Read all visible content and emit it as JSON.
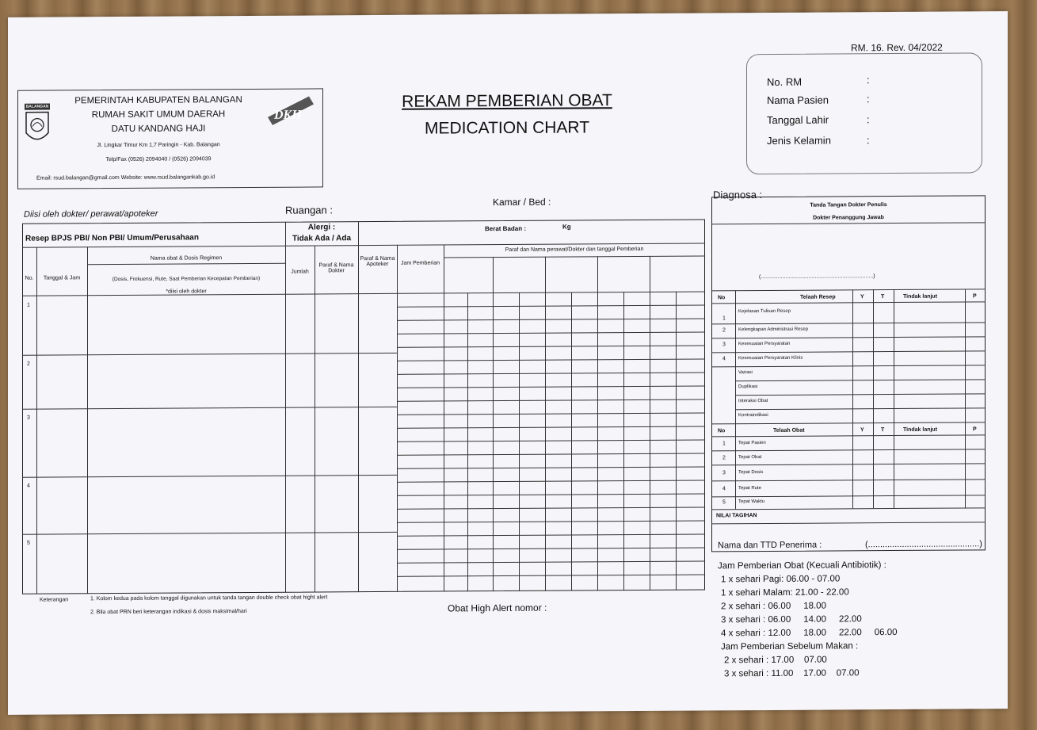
{
  "form_code": "RM. 16. Rev. 04/2022",
  "header": {
    "logo_text": "BALANGAN",
    "line1": "PEMERINTAH KABUPATEN BALANGAN",
    "line2": "RUMAH SAKIT UMUM DAERAH",
    "line3": "DATU KANDANG HAJI",
    "address": "Jl. Lingkar Timur Km 1,7 Paringin - Kab. Balangan",
    "phone": "Telp/Fax (0526) 2094040 / (0526) 2094039",
    "email": "Email: rsud.balangan@gmail.com Website: www.rsud.balangankab.go.id",
    "badge": "DKH"
  },
  "title": {
    "line1": "REKAM PEMBERIAN OBAT",
    "line2": "MEDICATION CHART"
  },
  "patient": {
    "no_rm": "No. RM",
    "nama": "Nama Pasien",
    "tgl": "Tanggal Lahir",
    "jk": "Jenis Kelamin",
    "colon": ":"
  },
  "labels": {
    "diisi": "Diisi oleh dokter/ perawat/apoteker",
    "ruangan": "Ruangan :",
    "kamar": "Kamar / Bed :",
    "diagnosa": "Diagnosa :",
    "resep": "Resep BPJS PBI/ Non PBI/ Umum/Perusahaan",
    "alergi": "Alergi :",
    "alergi2": "Tidak Ada / Ada",
    "berat": "Berat Badan :",
    "kg": "Kg",
    "no": "No.",
    "tanggal": "Tanggal & Jam",
    "nama_obat": "Nama obat & Dosis Regimen",
    "dosis_detail": "(Dosis, Frekuensi, Rute, Saat Pemberian Kecepatan Pemberian)",
    "diisi_dokter": "*diisi oleh dokter",
    "jumlah": "Jumlah",
    "paraf_dokter": "Paraf & Nama Dokter",
    "paraf_apoteker": "Paraf & Nama Apoteker",
    "jam_pemberian": "Jam Pemberian",
    "paraf_perawat": "Paraf dan Nama perawat/Dokter dan tanggal Pemberian",
    "rows": [
      "1",
      "2",
      "3",
      "4",
      "5"
    ],
    "keterangan": "Keterangan",
    "ket1": "1. Kolom kedua pada kolom tanggal digunakan untuk tanda tangan double check obat hight alert",
    "ket2": "2. Bila obat PRN beri keterangan indikasi & dosis maksimal/hari",
    "high_alert": "Obat High Alert nomor :"
  },
  "right": {
    "ttd1": "Tanda Tangan Dokter Penulis",
    "ttd2": "Dokter Penanggung Jawab",
    "bracket": "(.........................................................................)",
    "telaah_resep_head": [
      "No",
      "Telaah Resep",
      "Y",
      "T",
      "Tindak lanjut",
      "P"
    ],
    "telaah_resep": [
      [
        "1",
        "Kejelasan Tulisan Resep"
      ],
      [
        "2",
        "Kelengkapan Administrasi Resep"
      ],
      [
        "3",
        "Kesesuaian Persyaratan"
      ],
      [
        "4",
        "Kesesuaian Persyaratan Klinis"
      ],
      [
        "",
        "Variasi"
      ],
      [
        "",
        "Duplikasi"
      ],
      [
        "",
        "Interaksi Obat"
      ],
      [
        "",
        "Kontraindikasi"
      ]
    ],
    "telaah_obat_head": [
      "No",
      "Telaah Obat",
      "Y",
      "T",
      "Tindak lanjut",
      "P"
    ],
    "telaah_obat": [
      [
        "1",
        "Tepat Pasien"
      ],
      [
        "2",
        "Tepat Obat"
      ],
      [
        "3",
        "Tepat Dosis"
      ],
      [
        "4",
        "Tepat Rute"
      ],
      [
        "5",
        "Tepat Waktu"
      ]
    ],
    "nilai": "NILAI TAGIHAN",
    "penerima": "Nama dan TTD Penerima :",
    "penerima_bracket": "(..............................................)",
    "jam_title": "Jam Pemberian Obat (Kecuali Antibiotik) :",
    "jam_lines": [
      "1 x sehari Pagi: 06.00 - 07.00",
      "1 x sehari Malam: 21.00 - 22.00",
      "2 x sehari : 06.00     18.00",
      "3 x sehari : 06.00     14.00     22.00",
      "4 x sehari : 12.00     18.00     22.00     06.00"
    ],
    "makan_title": "Jam Pemberian Sebelum Makan :",
    "makan_lines": [
      "2 x sehari : 17.00    07.00",
      "3 x sehari : 11.00    17.00    07.00"
    ]
  }
}
